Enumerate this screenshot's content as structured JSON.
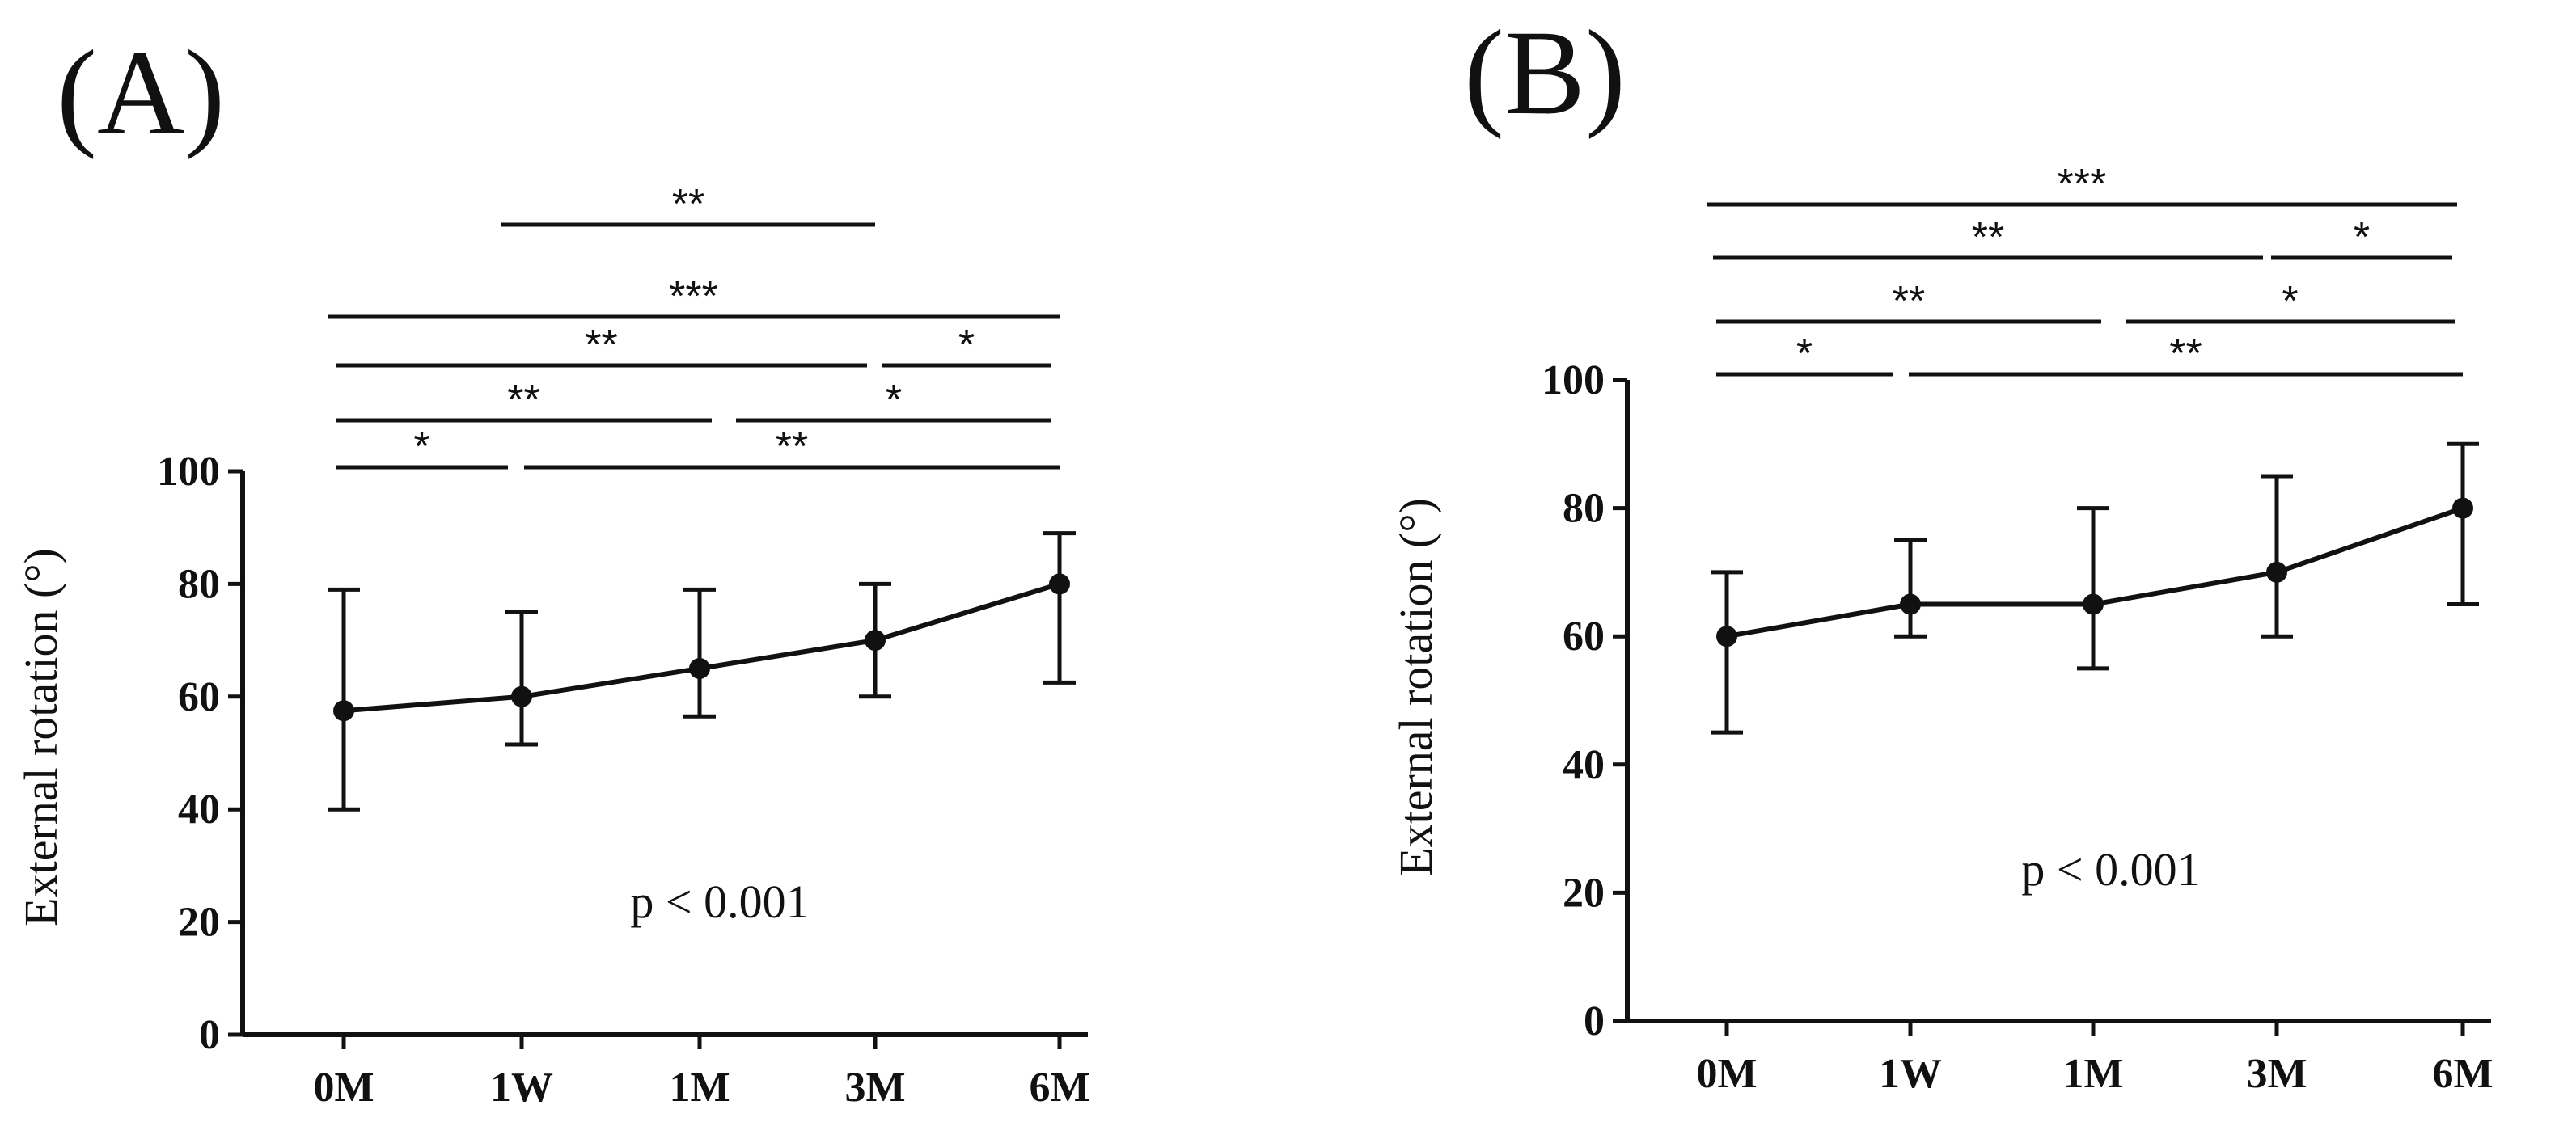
{
  "chart_data": [
    {
      "panel": "(A)",
      "type": "line",
      "categories": [
        "0M",
        "1W",
        "1M",
        "3M",
        "6M"
      ],
      "values": [
        57.5,
        60,
        65,
        70,
        80
      ],
      "error_low": [
        40,
        51.5,
        56.5,
        60,
        62.5
      ],
      "error_high": [
        79,
        75,
        79,
        80,
        89
      ],
      "ylabel": "External rotation (°)",
      "yticks": [
        0,
        20,
        40,
        60,
        80,
        100
      ],
      "ylim": [
        0,
        100
      ],
      "annotation": "p < 0.001",
      "significance": [
        {
          "from": "1W",
          "to": "3M",
          "label": "**"
        },
        {
          "from": "0M",
          "to": "6M",
          "label": "***"
        },
        {
          "from": "0M",
          "to": "3M",
          "label": "**"
        },
        {
          "from": "3M",
          "to": "6M",
          "label": "*"
        },
        {
          "from": "0M",
          "to": "1M",
          "label": "**"
        },
        {
          "from": "1M",
          "to": "6M",
          "label": "*"
        },
        {
          "from": "0M",
          "to": "1W",
          "label": "*"
        },
        {
          "from": "1W",
          "to": "6M",
          "label": "**"
        }
      ]
    },
    {
      "panel": "(B)",
      "type": "line",
      "categories": [
        "0M",
        "1W",
        "1M",
        "3M",
        "6M"
      ],
      "values": [
        60,
        65,
        65,
        70,
        80
      ],
      "error_low": [
        45,
        60,
        55,
        60,
        65
      ],
      "error_high": [
        70,
        75,
        80,
        85,
        90
      ],
      "ylabel": "External rotation (°)",
      "yticks": [
        0,
        20,
        40,
        60,
        80,
        100
      ],
      "ylim": [
        0,
        100
      ],
      "annotation": "p < 0.001",
      "significance": [
        {
          "from": "0M",
          "to": "6M",
          "label": "***"
        },
        {
          "from": "0M",
          "to": "3M",
          "label": "**"
        },
        {
          "from": "3M",
          "to": "6M",
          "label": "*"
        },
        {
          "from": "0M",
          "to": "1M",
          "label": "**"
        },
        {
          "from": "1M",
          "to": "6M",
          "label": "*"
        },
        {
          "from": "0M",
          "to": "1W",
          "label": "*"
        },
        {
          "from": "1W",
          "to": "6M",
          "label": "**"
        }
      ]
    }
  ]
}
